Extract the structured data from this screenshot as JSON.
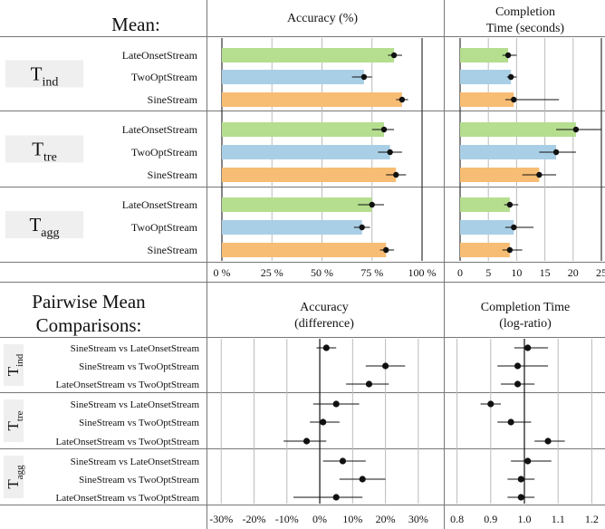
{
  "header": {
    "mean_title": "Mean:",
    "accuracy_title": "Accuracy (%)",
    "completion_title_1": "Completion",
    "completion_title_2": "Time (seconds)",
    "pairwise_title_1": "Pairwise Mean",
    "pairwise_title_2": "Comparisons:",
    "acc_diff_title_1": "Accuracy",
    "acc_diff_title_2": "(difference)",
    "comp_ratio_title_1": "Completion Time",
    "comp_ratio_title_2": "(log-ratio)"
  },
  "colors": {
    "LateOnsetStream": "#b5de8f",
    "TwoOptStream": "#a9cfe6",
    "SineStream": "#f7bd74"
  },
  "chart_data": [
    {
      "type": "bar",
      "title": "Accuracy (%)",
      "xlim": [
        0,
        100
      ],
      "ticks": [
        0,
        25,
        50,
        75,
        100
      ],
      "tick_labels": [
        "0 %",
        "25 %",
        "50 %",
        "75 %",
        "100 %"
      ],
      "groups": [
        {
          "main": "T",
          "sub": "ind",
          "rows": [
            {
              "label": "LateOnsetStream",
              "value": 86,
              "ci": [
                83,
                90
              ]
            },
            {
              "label": "TwoOptStream",
              "value": 71,
              "ci": [
                65,
                75
              ]
            },
            {
              "label": "SineStream",
              "value": 90,
              "ci": [
                87,
                93
              ]
            }
          ]
        },
        {
          "main": "T",
          "sub": "tre",
          "rows": [
            {
              "label": "LateOnsetStream",
              "value": 81,
              "ci": [
                75,
                86
              ]
            },
            {
              "label": "TwoOptStream",
              "value": 84,
              "ci": [
                78,
                90
              ]
            },
            {
              "label": "SineStream",
              "value": 87,
              "ci": [
                82,
                92
              ]
            }
          ]
        },
        {
          "main": "T",
          "sub": "agg",
          "rows": [
            {
              "label": "LateOnsetStream",
              "value": 75,
              "ci": [
                68,
                81
              ]
            },
            {
              "label": "TwoOptStream",
              "value": 70,
              "ci": [
                66,
                74
              ]
            },
            {
              "label": "SineStream",
              "value": 82,
              "ci": [
                79,
                86
              ]
            }
          ]
        }
      ]
    },
    {
      "type": "bar",
      "title": "Completion Time (seconds)",
      "xlim": [
        0,
        25
      ],
      "ticks": [
        0,
        5,
        10,
        15,
        20,
        25
      ],
      "tick_labels": [
        "0",
        "5",
        "10",
        "15",
        "20",
        "25"
      ],
      "groups": [
        {
          "main": "T",
          "sub": "ind",
          "rows": [
            {
              "label": "LateOnsetStream",
              "value": 8.5,
              "ci": [
                7.5,
                10
              ]
            },
            {
              "label": "TwoOptStream",
              "value": 9,
              "ci": [
                8.3,
                10
              ]
            },
            {
              "label": "SineStream",
              "value": 9.5,
              "ci": [
                8,
                17.5
              ]
            }
          ]
        },
        {
          "main": "T",
          "sub": "tre",
          "rows": [
            {
              "label": "LateOnsetStream",
              "value": 20.5,
              "ci": [
                17,
                25
              ]
            },
            {
              "label": "TwoOptStream",
              "value": 17,
              "ci": [
                14,
                20.5
              ]
            },
            {
              "label": "SineStream",
              "value": 14,
              "ci": [
                11,
                17
              ]
            }
          ]
        },
        {
          "main": "T",
          "sub": "agg",
          "rows": [
            {
              "label": "LateOnsetStream",
              "value": 8.8,
              "ci": [
                7.8,
                10.3
              ]
            },
            {
              "label": "TwoOptStream",
              "value": 9.5,
              "ci": [
                8,
                13
              ]
            },
            {
              "label": "SineStream",
              "value": 8.8,
              "ci": [
                7.5,
                11
              ]
            }
          ]
        }
      ]
    },
    {
      "type": "scatter",
      "title": "Accuracy (difference)",
      "xlim": [
        -32,
        35
      ],
      "ticks": [
        -30,
        -20,
        -10,
        0,
        10,
        20,
        30
      ],
      "tick_labels": [
        "-30%",
        "-20%",
        "-10%",
        "0%",
        "10%",
        "20%",
        "30%"
      ],
      "reference": 0,
      "groups": [
        {
          "main": "T",
          "sub": "ind",
          "rows": [
            {
              "label": "SineStream vs LateOnsetStream",
              "value": 2,
              "ci": [
                -1,
                5
              ]
            },
            {
              "label": "SineStream vs TwoOptStream",
              "value": 20,
              "ci": [
                14,
                26
              ]
            },
            {
              "label": "LateOnsetStream vs TwoOptStream",
              "value": 15,
              "ci": [
                8,
                21
              ]
            }
          ]
        },
        {
          "main": "T",
          "sub": "tre",
          "rows": [
            {
              "label": "SineStream vs LateOnsetStream",
              "value": 5,
              "ci": [
                -2,
                12
              ]
            },
            {
              "label": "SineStream vs TwoOptStream",
              "value": 1,
              "ci": [
                -3,
                6
              ]
            },
            {
              "label": "LateOnsetStream vs TwoOptStream",
              "value": -4,
              "ci": [
                -11,
                2
              ]
            }
          ]
        },
        {
          "main": "T",
          "sub": "agg",
          "rows": [
            {
              "label": "SineStream vs LateOnsetStream",
              "value": 7,
              "ci": [
                1,
                14
              ]
            },
            {
              "label": "SineStream vs TwoOptStream",
              "value": 13,
              "ci": [
                6,
                20
              ]
            },
            {
              "label": "LateOnsetStream vs TwoOptStream",
              "value": 5,
              "ci": [
                -8,
                13
              ]
            }
          ]
        }
      ]
    },
    {
      "type": "scatter",
      "title": "Completion Time (log-ratio)",
      "xlim": [
        0.75,
        1.25
      ],
      "ticks": [
        0.8,
        0.9,
        1.0,
        1.1,
        1.2
      ],
      "tick_labels": [
        "0.8",
        "0.9",
        "1.0",
        "1.1",
        "1.2"
      ],
      "reference": 1.0,
      "groups": [
        {
          "main": "T",
          "sub": "ind",
          "rows": [
            {
              "label": "SineStream vs LateOnsetStream",
              "value": 1.01,
              "ci": [
                0.97,
                1.07
              ]
            },
            {
              "label": "SineStream vs TwoOptStream",
              "value": 0.98,
              "ci": [
                0.92,
                1.07
              ]
            },
            {
              "label": "LateOnsetStream vs TwoOptStream",
              "value": 0.98,
              "ci": [
                0.93,
                1.03
              ]
            }
          ]
        },
        {
          "main": "T",
          "sub": "tre",
          "rows": [
            {
              "label": "SineStream vs LateOnsetStream",
              "value": 0.9,
              "ci": [
                0.87,
                0.93
              ]
            },
            {
              "label": "SineStream vs TwoOptStream",
              "value": 0.96,
              "ci": [
                0.92,
                1.02
              ]
            },
            {
              "label": "LateOnsetStream vs TwoOptStream",
              "value": 1.07,
              "ci": [
                1.03,
                1.12
              ]
            }
          ]
        },
        {
          "main": "T",
          "sub": "agg",
          "rows": [
            {
              "label": "SineStream vs LateOnsetStream",
              "value": 1.01,
              "ci": [
                0.96,
                1.08
              ]
            },
            {
              "label": "SineStream vs TwoOptStream",
              "value": 0.99,
              "ci": [
                0.95,
                1.03
              ]
            },
            {
              "label": "LateOnsetStream vs TwoOptStream",
              "value": 0.99,
              "ci": [
                0.95,
                1.03
              ]
            }
          ]
        }
      ]
    }
  ]
}
